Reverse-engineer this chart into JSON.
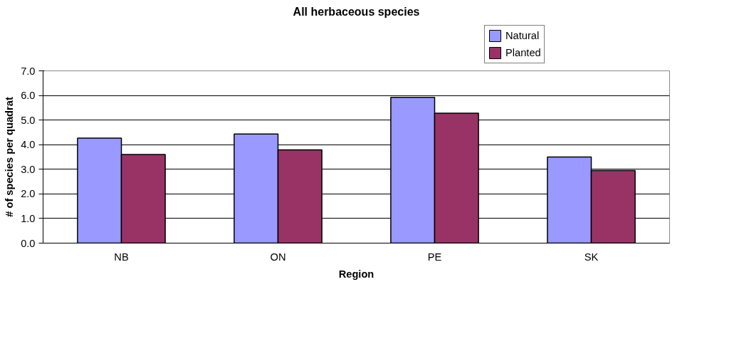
{
  "chart_data": {
    "type": "bar",
    "title": "All herbaceous species",
    "xlabel": "Region",
    "ylabel": "# of species per quadrat",
    "categories": [
      "NB",
      "ON",
      "PE",
      "SK"
    ],
    "series": [
      {
        "name": "Natural",
        "color": "#9999ff",
        "values": [
          4.27,
          4.43,
          5.92,
          3.5
        ]
      },
      {
        "name": "Planted",
        "color": "#993366",
        "values": [
          3.6,
          3.79,
          5.28,
          2.95
        ]
      }
    ],
    "ylim": [
      0,
      7
    ],
    "yticks": [
      {
        "value": 0,
        "label": "0.0"
      },
      {
        "value": 1,
        "label": "1.0"
      },
      {
        "value": 2,
        "label": "2.0"
      },
      {
        "value": 3,
        "label": "3.0"
      },
      {
        "value": 4,
        "label": "4.0"
      },
      {
        "value": 5,
        "label": "5.0"
      },
      {
        "value": 6,
        "label": "6.0"
      },
      {
        "value": 7,
        "label": "7.0"
      }
    ],
    "grid": "y",
    "legend": "top right"
  }
}
